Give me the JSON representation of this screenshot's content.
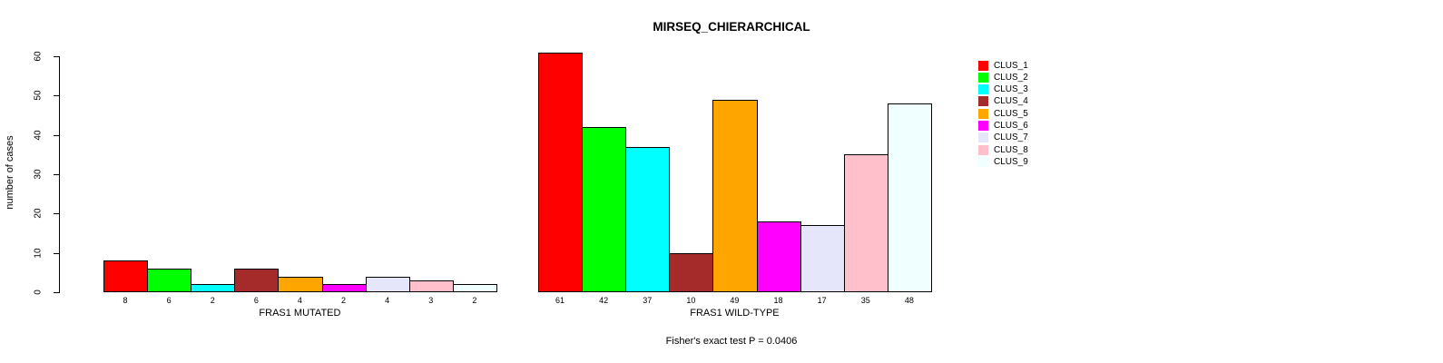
{
  "chart_data": {
    "type": "bar",
    "title": "MIRSEQ_CHIERARCHICAL",
    "ylabel": "number of cases",
    "xlabel": "",
    "ylim": [
      0,
      60
    ],
    "yticks": [
      0,
      10,
      20,
      30,
      40,
      50,
      60
    ],
    "grid": false,
    "bar_borders": "#000000",
    "bar_value_labels_shown": true,
    "legend_position": "right",
    "categories": [
      "FRAS1 MUTATED",
      "FRAS1 WILD-TYPE"
    ],
    "series": [
      {
        "name": "CLUS_1",
        "color": "#FF0000",
        "values": [
          8,
          61
        ]
      },
      {
        "name": "CLUS_2",
        "color": "#00FF00",
        "values": [
          6,
          42
        ]
      },
      {
        "name": "CLUS_3",
        "color": "#00FFFF",
        "values": [
          2,
          37
        ]
      },
      {
        "name": "CLUS_4",
        "color": "#A52A2A",
        "values": [
          6,
          10
        ]
      },
      {
        "name": "CLUS_5",
        "color": "#FFA500",
        "values": [
          4,
          49
        ]
      },
      {
        "name": "CLUS_6",
        "color": "#FF00FF",
        "values": [
          2,
          18
        ]
      },
      {
        "name": "CLUS_7",
        "color": "#E6E6FA",
        "values": [
          4,
          17
        ]
      },
      {
        "name": "CLUS_8",
        "color": "#FFC0CB",
        "values": [
          3,
          35
        ]
      },
      {
        "name": "CLUS_9",
        "color": "#F0FFFF",
        "values": [
          2,
          48
        ]
      }
    ],
    "annotation": "Fisher's exact test P = 0.0406"
  }
}
